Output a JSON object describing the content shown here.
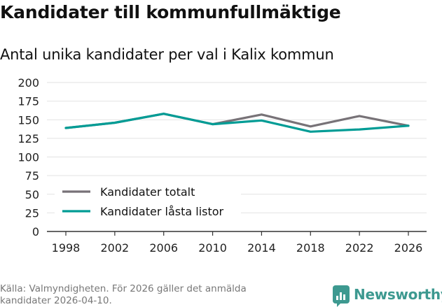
{
  "header": {
    "title": "Kandidater till kommunfullmäktige",
    "subtitle": "Antal unika kandidater per val i Kalix kommun"
  },
  "chart_data": {
    "type": "line",
    "x": [
      "1998",
      "2002",
      "2006",
      "2010",
      "2014",
      "2018",
      "2022",
      "2026"
    ],
    "series": [
      {
        "name": "Kandidater totalt",
        "color": "#777277",
        "values": [
          139,
          146,
          158,
          144,
          157,
          141,
          155,
          142
        ]
      },
      {
        "name": "Kandidater låsta listor",
        "color": "#009c95",
        "values": [
          139,
          146,
          158,
          144,
          149,
          134,
          137,
          142
        ]
      }
    ],
    "y_ticks": [
      "0",
      "25",
      "50",
      "75",
      "100",
      "125",
      "150",
      "175",
      "200"
    ],
    "ylim": [
      0,
      200
    ],
    "grid": true,
    "legend_position": "bottom-left",
    "xlabel": "",
    "ylabel": ""
  },
  "footer": {
    "source": "Källa: Valmyndigheten. För 2026 gäller det anmälda kandidater 2026-04-10.",
    "brand": "Newsworthy",
    "brand_icon": "bar-chart-icon"
  }
}
